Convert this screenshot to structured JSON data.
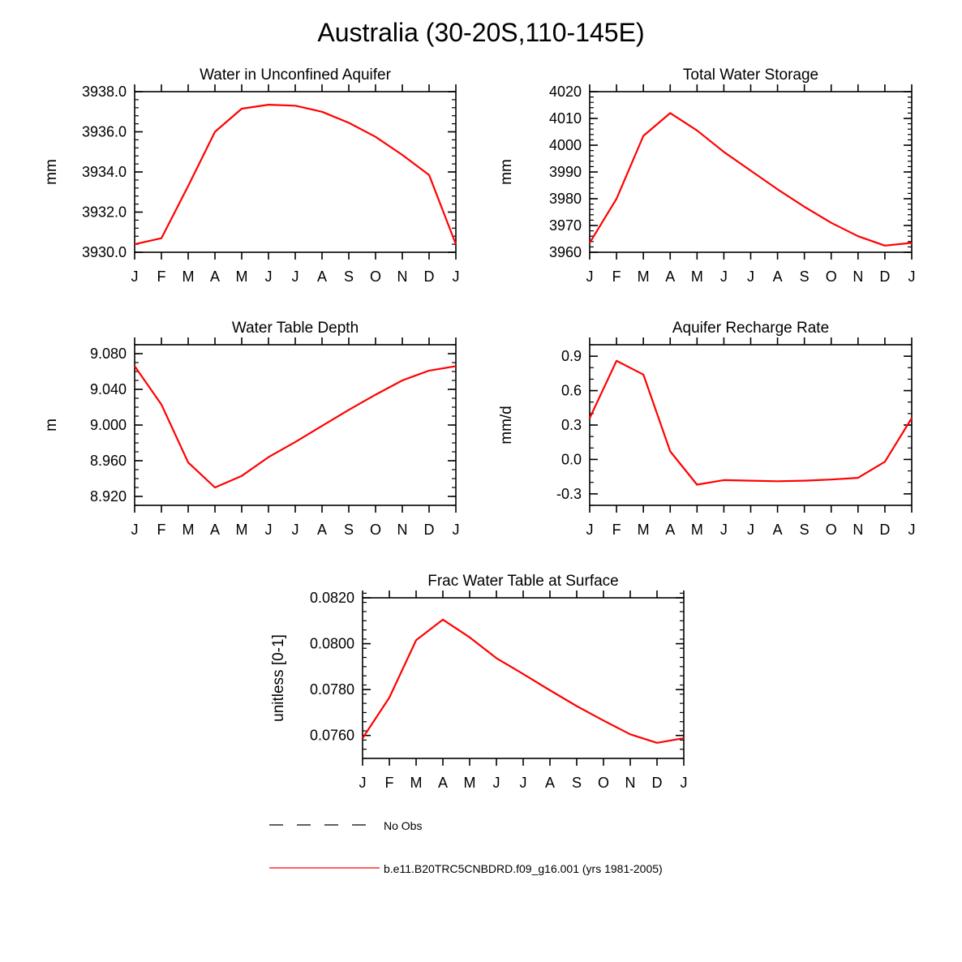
{
  "title": "Australia (30-20S,110-145E)",
  "line_color": "#ff0000",
  "chart_data": [
    {
      "type": "line",
      "title": "Water in Unconfined Aquifer",
      "ylabel": "mm",
      "x": [
        "J",
        "F",
        "M",
        "A",
        "M",
        "J",
        "J",
        "A",
        "S",
        "O",
        "N",
        "D",
        "J"
      ],
      "ylim": [
        3930.0,
        3938.0
      ],
      "yticks": [
        "3930.0",
        "3932.0",
        "3934.0",
        "3936.0",
        "3938.0"
      ],
      "ytick_values": [
        3930,
        3932,
        3934,
        3936,
        3938
      ],
      "ytick_minor_step": 0.4,
      "values": [
        3930.4,
        3930.7,
        3933.3,
        3936.0,
        3937.15,
        3937.35,
        3937.3,
        3937.0,
        3936.45,
        3935.75,
        3934.85,
        3933.85,
        3930.4
      ]
    },
    {
      "type": "line",
      "title": "Total Water Storage",
      "ylabel": "mm",
      "x": [
        "J",
        "F",
        "M",
        "A",
        "M",
        "J",
        "J",
        "A",
        "S",
        "O",
        "N",
        "D",
        "J"
      ],
      "ylim": [
        3960,
        4020
      ],
      "yticks": [
        "3960",
        "3970",
        "3980",
        "3990",
        "4000",
        "4010",
        "4020"
      ],
      "ytick_values": [
        3960,
        3970,
        3980,
        3990,
        4000,
        4010,
        4020
      ],
      "ytick_minor_step": 2,
      "values": [
        3963.5,
        3980.0,
        4003.5,
        4012.0,
        4005.5,
        3997.5,
        3990.5,
        3983.5,
        3977.0,
        3971.0,
        3966.0,
        3962.5,
        3963.5
      ]
    },
    {
      "type": "line",
      "title": "Water Table Depth",
      "ylabel": "m",
      "x": [
        "J",
        "F",
        "M",
        "A",
        "M",
        "J",
        "J",
        "A",
        "S",
        "O",
        "N",
        "D",
        "J"
      ],
      "ylim": [
        8.91,
        9.09
      ],
      "yticks": [
        "8.920",
        "8.960",
        "9.000",
        "9.040",
        "9.080"
      ],
      "ytick_values": [
        8.92,
        8.96,
        9.0,
        9.04,
        9.08
      ],
      "ytick_minor_step": 0.01,
      "values": [
        9.066,
        9.023,
        8.958,
        8.93,
        8.943,
        8.964,
        8.981,
        8.999,
        9.017,
        9.034,
        9.05,
        9.061,
        9.066
      ]
    },
    {
      "type": "line",
      "title": "Aquifer Recharge Rate",
      "ylabel": "mm/d",
      "x": [
        "J",
        "F",
        "M",
        "A",
        "M",
        "J",
        "J",
        "A",
        "S",
        "O",
        "N",
        "D",
        "J"
      ],
      "ylim": [
        -0.4,
        1.0
      ],
      "yticks": [
        "-0.3",
        "0.0",
        "0.3",
        "0.6",
        "0.9"
      ],
      "ytick_values": [
        -0.3,
        0.0,
        0.3,
        0.6,
        0.9
      ],
      "ytick_minor_step": 0.1,
      "values": [
        0.36,
        0.86,
        0.74,
        0.07,
        -0.22,
        -0.18,
        -0.185,
        -0.19,
        -0.185,
        -0.175,
        -0.16,
        -0.02,
        0.36
      ]
    },
    {
      "type": "line",
      "title": "Frac Water Table at Surface",
      "ylabel": "unitless [0-1]",
      "x": [
        "J",
        "F",
        "M",
        "A",
        "M",
        "J",
        "J",
        "A",
        "S",
        "O",
        "N",
        "D",
        "J"
      ],
      "ylim": [
        0.075,
        0.082
      ],
      "yticks": [
        "0.0760",
        "0.0780",
        "0.0800",
        "0.0820"
      ],
      "ytick_values": [
        0.076,
        0.078,
        0.08,
        0.082
      ],
      "ytick_minor_step": 0.0004,
      "values": [
        0.07588,
        0.07765,
        0.08015,
        0.08105,
        0.08028,
        0.07937,
        0.07868,
        0.07797,
        0.07728,
        0.07665,
        0.07605,
        0.07568,
        0.07588
      ]
    }
  ],
  "legend": {
    "items": [
      {
        "label": "No Obs",
        "style": "dashed",
        "color": "#000000"
      },
      {
        "label": "b.e11.B20TRC5CNBDRD.f09_g16.001 (yrs 1981-2005)",
        "style": "solid",
        "color": "#ff0000"
      }
    ]
  }
}
